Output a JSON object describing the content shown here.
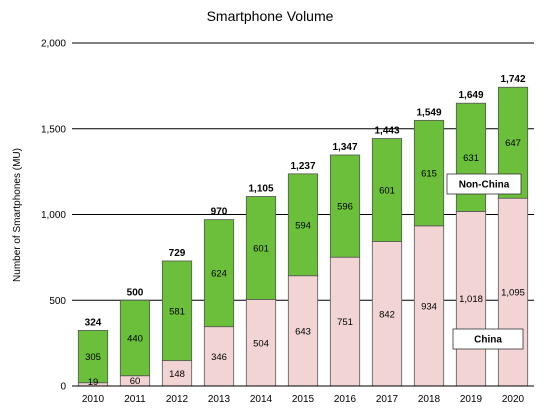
{
  "chart_data": {
    "type": "bar",
    "stacked": true,
    "title": "Smartphone Volume",
    "ylabel": "Number of Smartphones (MU)",
    "xlabel": "",
    "ylim": [
      0,
      2000
    ],
    "yticks": [
      "0",
      "500",
      "1,000",
      "1,500",
      "2,000"
    ],
    "grid": true,
    "categories": [
      "2010",
      "2011",
      "2012",
      "2013",
      "2014",
      "2015",
      "2016",
      "2017",
      "2018",
      "2019",
      "2020"
    ],
    "series": [
      {
        "name": "China",
        "color": "#f2d4d4",
        "values": [
          19,
          60,
          148,
          346,
          504,
          643,
          751,
          842,
          934,
          1018,
          1095
        ],
        "labels": [
          "19",
          "60",
          "148",
          "346",
          "504",
          "643",
          "751",
          "842",
          "934",
          "1,018",
          "1,095"
        ]
      },
      {
        "name": "Non-China",
        "color": "#6cbf3a",
        "values": [
          305,
          440,
          581,
          624,
          601,
          594,
          596,
          601,
          615,
          631,
          647
        ],
        "labels": [
          "305",
          "440",
          "581",
          "624",
          "601",
          "594",
          "596",
          "601",
          "615",
          "631",
          "647"
        ]
      }
    ],
    "totals": [
      "324",
      "500",
      "729",
      "970",
      "1,105",
      "1,237",
      "1,347",
      "1,443",
      "1,549",
      "1,649",
      "1,742"
    ],
    "totals_values": [
      324,
      500,
      729,
      970,
      1105,
      1237,
      1347,
      1443,
      1549,
      1649,
      1742
    ],
    "legend": [
      {
        "label": "Non-China",
        "placement": "right-middle"
      },
      {
        "label": "China",
        "placement": "right-bottom"
      }
    ]
  }
}
